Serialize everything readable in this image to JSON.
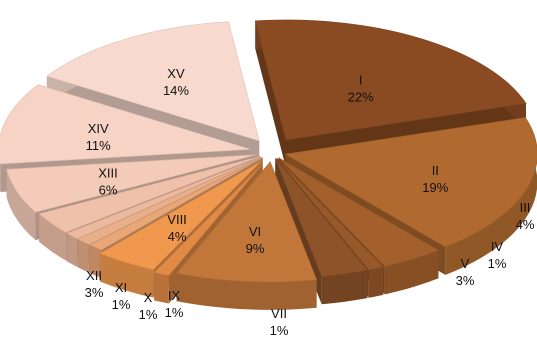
{
  "chart_data": {
    "type": "pie",
    "style": "3d-exploded",
    "categories": [
      "I",
      "II",
      "III",
      "IV",
      "V",
      "VI",
      "VII",
      "VIII",
      "IX",
      "X",
      "XI",
      "XII",
      "XIII",
      "XIV",
      "XV"
    ],
    "values": [
      22,
      19,
      4,
      1,
      3,
      9,
      1,
      4,
      1,
      1,
      1,
      3,
      6,
      11,
      14
    ],
    "value_labels": [
      "22%",
      "19%",
      "4%",
      "1%",
      "3%",
      "9%",
      "1%",
      "4%",
      "1%",
      "1%",
      "1%",
      "3%",
      "6%",
      "11%",
      "14%"
    ],
    "colors": [
      "#8b4b22",
      "#b06a2f",
      "#a3602c",
      "#98592a",
      "#8e5329",
      "#c2773a",
      "#e08a46",
      "#f0984e",
      "#e9a677",
      "#e8af8a",
      "#ecb9a0",
      "#efc1aa",
      "#f3cbb8",
      "#f6d3c4",
      "#f8d9ce"
    ],
    "legend": "none"
  }
}
